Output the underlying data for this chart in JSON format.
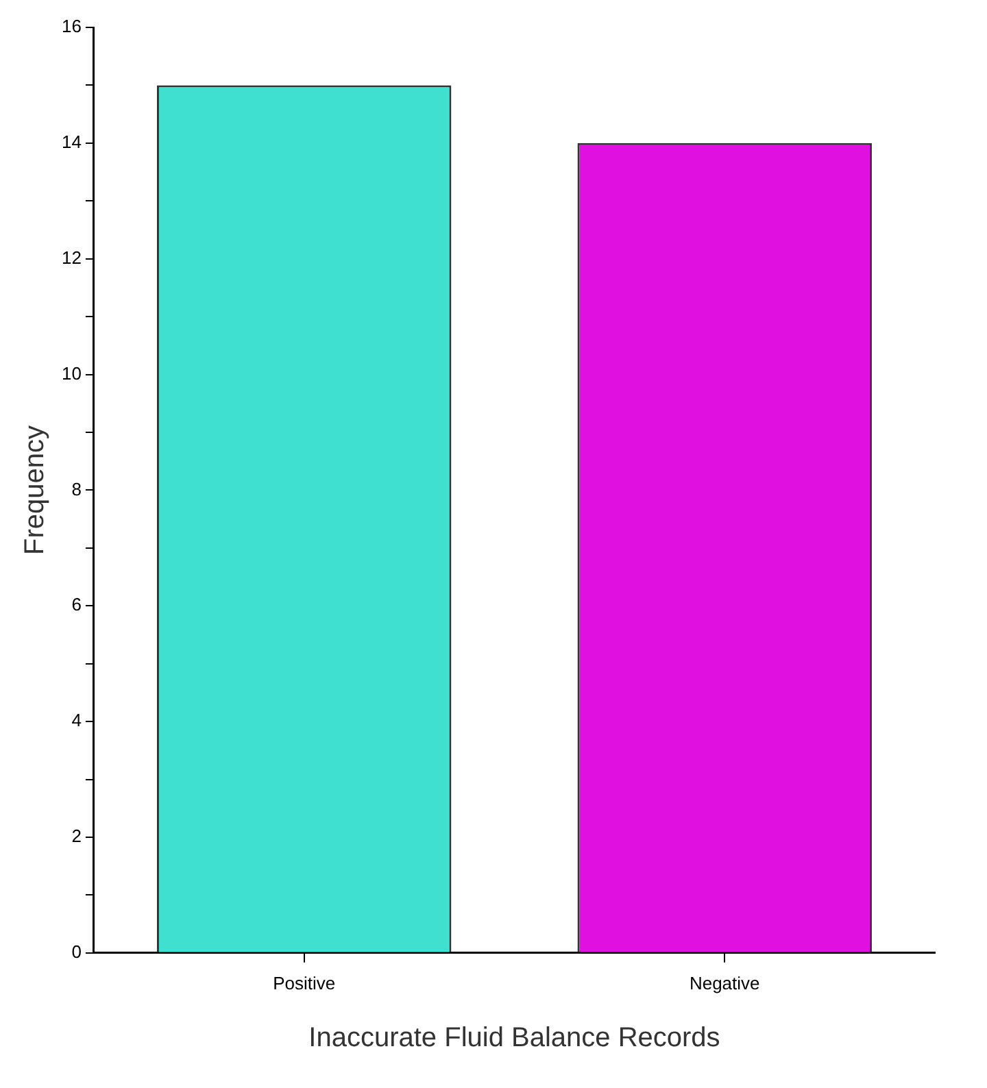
{
  "chart_data": {
    "type": "bar",
    "xlabel": "Inaccurate Fluid Balance Records",
    "ylabel": "Frequency",
    "categories": [
      "Positive",
      "Negative"
    ],
    "values": [
      15,
      14
    ],
    "colors": [
      "#40e0d0",
      "#e010e0"
    ],
    "ylim": [
      0,
      16
    ],
    "yticks": [
      0,
      {
        "value": 1,
        "label": null
      },
      2,
      {
        "value": 3,
        "label": null
      },
      4,
      {
        "value": 5,
        "label": null
      },
      6,
      {
        "value": 7,
        "label": null
      },
      8,
      {
        "value": 9,
        "label": null
      },
      10,
      {
        "value": 11,
        "label": null
      },
      12,
      {
        "value": 13,
        "label": null
      },
      14,
      {
        "value": 15,
        "label": null
      },
      16
    ],
    "grid": false,
    "legend": false
  }
}
